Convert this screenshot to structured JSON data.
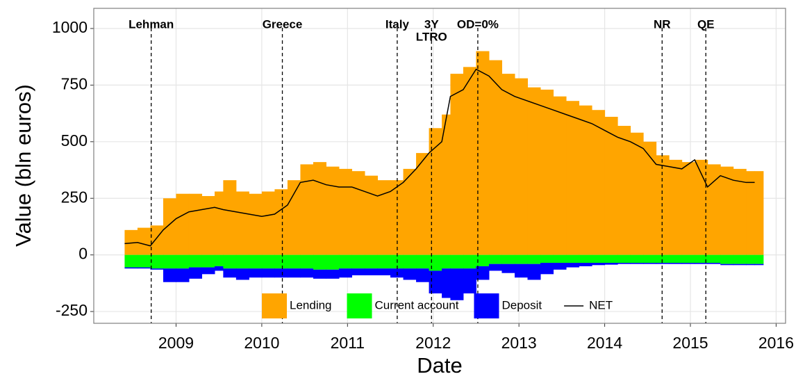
{
  "chart_data": {
    "type": "area",
    "xlabel": "Date",
    "ylabel": "Value (bln euros)",
    "x": [
      2008.4,
      2008.55,
      2008.7,
      2008.85,
      2009.0,
      2009.15,
      2009.3,
      2009.45,
      2009.55,
      2009.7,
      2009.85,
      2010.0,
      2010.15,
      2010.3,
      2010.45,
      2010.6,
      2010.75,
      2010.9,
      2011.05,
      2011.2,
      2011.35,
      2011.5,
      2011.65,
      2011.8,
      2011.95,
      2012.1,
      2012.2,
      2012.35,
      2012.5,
      2012.65,
      2012.8,
      2012.95,
      2013.1,
      2013.25,
      2013.4,
      2013.55,
      2013.7,
      2013.85,
      2014.0,
      2014.15,
      2014.3,
      2014.45,
      2014.6,
      2014.75,
      2014.9,
      2015.05,
      2015.2,
      2015.35,
      2015.5,
      2015.65,
      2015.75
    ],
    "series": [
      {
        "name": "Lending",
        "color": "#ffa500",
        "values": [
          110,
          120,
          130,
          250,
          270,
          270,
          260,
          280,
          330,
          280,
          270,
          280,
          290,
          330,
          400,
          410,
          390,
          380,
          370,
          350,
          330,
          330,
          380,
          450,
          560,
          620,
          800,
          830,
          900,
          860,
          800,
          780,
          740,
          730,
          700,
          680,
          660,
          640,
          610,
          570,
          540,
          500,
          440,
          420,
          410,
          420,
          400,
          390,
          380,
          370,
          370
        ]
      },
      {
        "name": "Current account",
        "color": "#00ff00",
        "values": [
          -55,
          -55,
          -60,
          -60,
          -60,
          -55,
          -55,
          -50,
          -60,
          -60,
          -60,
          -60,
          -60,
          -60,
          -60,
          -65,
          -65,
          -60,
          -60,
          -60,
          -60,
          -60,
          -60,
          -60,
          -70,
          -60,
          -60,
          -60,
          -50,
          -40,
          -40,
          -40,
          -40,
          -35,
          -35,
          -35,
          -35,
          -35,
          -35,
          -35,
          -35,
          -35,
          -35,
          -35,
          -35,
          -35,
          -35,
          -40,
          -40,
          -40,
          -40
        ]
      },
      {
        "name": "Deposit",
        "color": "#0000ff",
        "values": [
          -5,
          -5,
          -5,
          -60,
          -60,
          -50,
          -30,
          -20,
          -40,
          -50,
          -40,
          -40,
          -40,
          -40,
          -40,
          -40,
          -40,
          -40,
          -30,
          -30,
          -30,
          -40,
          -50,
          -60,
          -100,
          -130,
          -140,
          -110,
          -60,
          -30,
          -40,
          -60,
          -70,
          -50,
          -30,
          -20,
          -15,
          -10,
          -8,
          -5,
          -5,
          -5,
          -5,
          -5,
          -5,
          -5,
          -5,
          -5,
          -5,
          -5,
          -5
        ]
      },
      {
        "name": "NET",
        "color": "#000000",
        "line": true,
        "values": [
          50,
          55,
          40,
          110,
          160,
          190,
          200,
          210,
          200,
          190,
          180,
          170,
          180,
          220,
          320,
          330,
          310,
          300,
          300,
          280,
          260,
          280,
          320,
          380,
          450,
          500,
          700,
          730,
          820,
          790,
          730,
          700,
          680,
          660,
          640,
          620,
          600,
          580,
          550,
          520,
          500,
          470,
          400,
          390,
          380,
          420,
          300,
          350,
          330,
          320,
          320
        ]
      }
    ],
    "events": [
      {
        "x": 2008.71,
        "lines": [
          "Lehman"
        ]
      },
      {
        "x": 2010.24,
        "lines": [
          "Greece"
        ]
      },
      {
        "x": 2011.58,
        "lines": [
          "Italy"
        ]
      },
      {
        "x": 2011.98,
        "lines": [
          "3Y",
          "LTRO"
        ]
      },
      {
        "x": 2012.52,
        "lines": [
          "OD=0%"
        ]
      },
      {
        "x": 2014.67,
        "lines": [
          "NR"
        ]
      },
      {
        "x": 2015.18,
        "lines": [
          "QE"
        ]
      }
    ],
    "xlim": [
      2008.04,
      2016.11
    ],
    "xticks": [
      2009,
      2010,
      2011,
      2012,
      2013,
      2014,
      2015,
      2016
    ],
    "ylim": [
      -302,
      1089
    ],
    "yticks": [
      -250,
      0,
      250,
      500,
      750,
      1000
    ],
    "grid": true
  }
}
